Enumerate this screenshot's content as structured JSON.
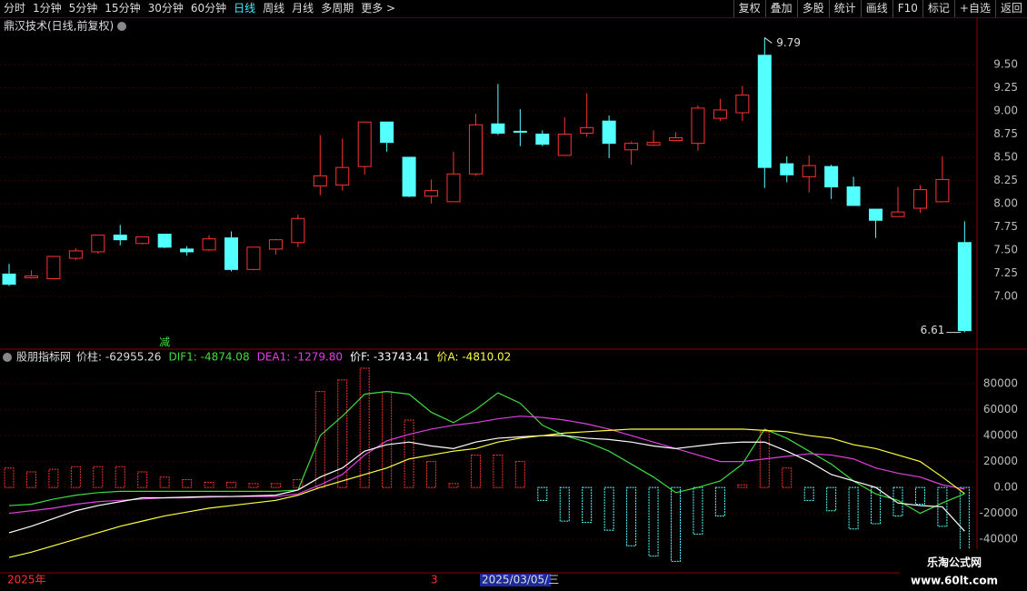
{
  "toolbar": {
    "left": [
      "分时",
      "1分钟",
      "5分钟",
      "15分钟",
      "30分钟",
      "60分钟",
      "日线",
      "周线",
      "月线",
      "多周期",
      "更多 >"
    ],
    "active": 6,
    "right": [
      "复权",
      "叠加",
      "多股",
      "统计",
      "画线",
      "F10",
      "标记",
      "+自选",
      "返回"
    ]
  },
  "chart_data": [
    {
      "type": "candlestick",
      "title": "鼎汉技术(日线,前复权)",
      "up_color": "#ff3232",
      "down_color": "#54ffff",
      "open": [
        7.24,
        7.2,
        7.19,
        7.41,
        7.48,
        7.66,
        7.57,
        7.67,
        7.51,
        7.5,
        7.63,
        7.29,
        7.51,
        7.58,
        8.19,
        8.2,
        8.4,
        8.88,
        8.5,
        8.08,
        8.02,
        8.32,
        8.86,
        8.78,
        8.75,
        8.52,
        8.76,
        8.89,
        8.58,
        8.63,
        8.68,
        8.65,
        8.92,
        8.98,
        9.6,
        8.43,
        8.29,
        8.4,
        8.18,
        7.94,
        7.86,
        7.95,
        8.02,
        7.58
      ],
      "high": [
        7.35,
        7.28,
        7.43,
        7.52,
        7.66,
        7.77,
        7.64,
        7.67,
        7.54,
        7.66,
        7.7,
        7.53,
        7.62,
        7.88,
        8.74,
        8.7,
        8.88,
        8.88,
        8.5,
        8.26,
        8.56,
        8.97,
        9.29,
        9.02,
        8.79,
        8.93,
        9.19,
        8.95,
        8.67,
        8.79,
        8.77,
        9.06,
        9.13,
        9.27,
        9.79,
        8.51,
        8.52,
        8.42,
        8.29,
        7.94,
        8.18,
        8.2,
        8.51,
        7.81
      ],
      "low": [
        7.11,
        7.19,
        7.19,
        7.39,
        7.46,
        7.55,
        7.56,
        7.52,
        7.44,
        7.49,
        7.27,
        7.28,
        7.45,
        7.53,
        8.09,
        8.14,
        8.31,
        8.56,
        8.07,
        8.0,
        8.02,
        8.3,
        8.74,
        8.62,
        8.62,
        8.52,
        8.72,
        8.49,
        8.42,
        8.62,
        8.68,
        8.57,
        8.89,
        8.89,
        8.17,
        8.23,
        8.12,
        8.05,
        7.98,
        7.63,
        7.86,
        7.9,
        8.02,
        6.61
      ],
      "close": [
        7.13,
        7.22,
        7.43,
        7.49,
        7.66,
        7.61,
        7.64,
        7.53,
        7.48,
        7.62,
        7.29,
        7.53,
        7.61,
        7.84,
        8.3,
        8.39,
        8.88,
        8.66,
        8.08,
        8.14,
        8.32,
        8.85,
        8.76,
        8.77,
        8.64,
        8.75,
        8.82,
        8.65,
        8.65,
        8.66,
        8.71,
        9.03,
        9.01,
        9.17,
        8.39,
        8.31,
        8.41,
        8.18,
        7.98,
        7.82,
        7.91,
        8.15,
        8.26,
        6.63
      ],
      "ylim": [
        6.44,
        10.0
      ],
      "yticks": [
        {
          "value": 7,
          "label": "7.00"
        },
        7.25,
        {
          "value": 7.5,
          "label": "7.50"
        },
        7.75,
        {
          "value": 8,
          "label": "8.00"
        },
        8.25,
        {
          "value": 8.5,
          "label": "8.50"
        },
        8.75,
        {
          "value": 9,
          "label": "9.00"
        },
        9.25,
        {
          "value": 9.5,
          "label": "9.50"
        }
      ],
      "max_label": 9.79,
      "min_label": 6.61,
      "signal": {
        "text": "减",
        "index": 7
      }
    },
    {
      "type": "indicator",
      "title": "股朋指标网",
      "ylim": [
        -64500,
        95500
      ],
      "yticks": [
        -40000,
        -20000,
        {
          "value": 0,
          "label": "0.00"
        },
        20000,
        40000,
        60000,
        80000
      ],
      "series": [
        {
          "name": "价柱",
          "legend_text": "价柱: -62955.26",
          "color": "#ff3232",
          "neg_color": "#54ffff",
          "kind": "bar",
          "values": [
            15000,
            12000,
            14000,
            16000,
            16000,
            16000,
            12000,
            8000,
            6000,
            4000,
            4000,
            3000,
            3000,
            6000,
            74000,
            83000,
            92000,
            74000,
            52000,
            20000,
            3000,
            25000,
            25000,
            20000,
            -10000,
            -26000,
            -27000,
            -33000,
            -45000,
            -53000,
            -57000,
            -36000,
            -22000,
            2000,
            43000,
            15000,
            -10000,
            -18000,
            -32000,
            -28000,
            -22000,
            -13000,
            -30000,
            -62955.26
          ]
        },
        {
          "name": "DIF1",
          "legend_text": "DIF1: -4874.08",
          "color": "#3fdc3f",
          "kind": "line",
          "values": [
            -14000,
            -13000,
            -9000,
            -6000,
            -4000,
            -3000,
            -3000,
            -3000,
            -3000,
            -3000,
            -3000,
            -3000,
            -3000,
            -2000,
            40000,
            55000,
            72000,
            74000,
            72000,
            58000,
            50000,
            60000,
            73000,
            65000,
            48000,
            40000,
            35000,
            28000,
            18000,
            8000,
            -4000,
            0,
            5000,
            18000,
            45000,
            38000,
            28000,
            18000,
            5000,
            -5000,
            -10000,
            -20000,
            -12000,
            -4874.08
          ]
        },
        {
          "name": "DEA1",
          "legend_text": "DEA1: -1279.80",
          "color": "#e040e0",
          "kind": "line",
          "values": [
            -20000,
            -18000,
            -16000,
            -13000,
            -11000,
            -10000,
            -9000,
            -8000,
            -8000,
            -7500,
            -7000,
            -7000,
            -7000,
            -5000,
            2000,
            10000,
            25000,
            36000,
            41000,
            45000,
            48000,
            50000,
            53000,
            55000,
            54000,
            52000,
            49000,
            45000,
            40000,
            35000,
            30000,
            25000,
            20000,
            20000,
            22000,
            24000,
            26000,
            25000,
            22000,
            15000,
            11000,
            8000,
            2000,
            -1279.8
          ]
        },
        {
          "name": "价F",
          "legend_text": "价F: -33743.41",
          "color": "#ffffff",
          "kind": "line",
          "values": [
            -35000,
            -30000,
            -24000,
            -18000,
            -14000,
            -11000,
            -8000,
            -8000,
            -7500,
            -7000,
            -7000,
            -6500,
            -6000,
            -2000,
            8000,
            15000,
            28000,
            33000,
            35000,
            32000,
            30000,
            35000,
            38000,
            39000,
            40000,
            40000,
            38000,
            37000,
            35000,
            32000,
            30000,
            32000,
            34000,
            35000,
            35000,
            28000,
            20000,
            10000,
            5000,
            0,
            -12000,
            -14000,
            -15000,
            -33743.41
          ]
        },
        {
          "name": "价A",
          "legend_text": "价A: -4810.02",
          "color": "#ffff40",
          "kind": "line",
          "values": [
            -54000,
            -50000,
            -45000,
            -40000,
            -35000,
            -30000,
            -26000,
            -22000,
            -19000,
            -16000,
            -14000,
            -12000,
            -10000,
            -6000,
            0,
            5000,
            10000,
            15000,
            22000,
            25000,
            28000,
            30000,
            35000,
            38000,
            40000,
            42000,
            43000,
            44000,
            45000,
            45000,
            45000,
            45000,
            45000,
            45000,
            44000,
            43000,
            40000,
            38000,
            33000,
            30000,
            25000,
            20000,
            8000,
            -4810.02
          ]
        }
      ]
    }
  ],
  "footer": {
    "year": "2025年",
    "month": "3",
    "cursor_date": "2025/03/05/三"
  },
  "watermark": {
    "name": "乐淘公式网",
    "url": "www.60lt.com"
  }
}
